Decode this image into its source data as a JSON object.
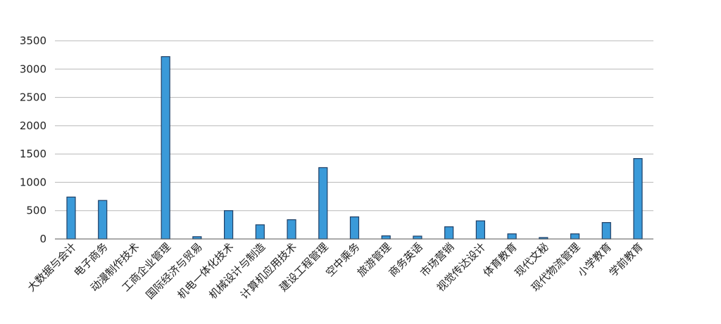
{
  "chart_data": {
    "type": "bar",
    "title": "",
    "xlabel": "",
    "ylabel": "",
    "ylim": [
      0,
      3500
    ],
    "yticks": [
      0,
      500,
      1000,
      1500,
      2000,
      2500,
      3000,
      3500
    ],
    "grid": true,
    "legend": "none",
    "bar_color": "#3a9ad9",
    "bar_edge_color": "#1f3f66",
    "categories": [
      "大数据与会计",
      "电子商务",
      "动漫制作技术",
      "工商企业管理",
      "国际经济与贸易",
      "机电一体化技术",
      "机械设计与制造",
      "计算机应用技术",
      "建设工程管理",
      "空中乘务",
      "旅游管理",
      "商务英语",
      "市场营销",
      "视觉传达设计",
      "体育教育",
      "现代文秘",
      "现代物流管理",
      "小学教育",
      "学前教育"
    ],
    "values": [
      740,
      680,
      0,
      3220,
      40,
      500,
      250,
      340,
      1260,
      390,
      55,
      50,
      215,
      320,
      90,
      25,
      90,
      290,
      1420
    ]
  }
}
